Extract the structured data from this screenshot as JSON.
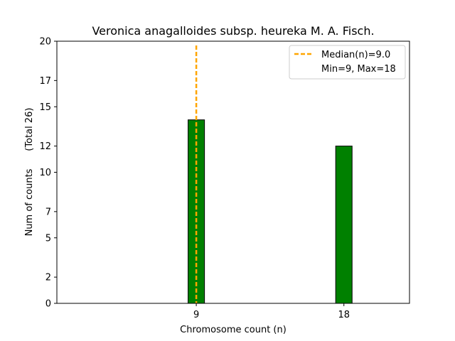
{
  "chart_data": {
    "type": "bar",
    "title": "Veronica anagalloides subsp. heureka M. A. Fisch.",
    "xlabel": "Chromosome count (n)",
    "ylabel": "Num of counts      (Total 26)",
    "categories": [
      9,
      18
    ],
    "values": [
      14,
      12
    ],
    "xlim": [
      0.5,
      22
    ],
    "ylim": [
      0,
      20
    ],
    "yticks": [
      0,
      2,
      5,
      7,
      10,
      12,
      15,
      17,
      20
    ],
    "xticks": [
      9,
      18
    ],
    "bar_width": 1,
    "bar_color": "#008000",
    "bar_edge_color": "#000000",
    "median_line": {
      "x": 9,
      "color": "#FFA500",
      "label": "Median(n)=9.0"
    },
    "legend": {
      "placement": "top-right",
      "entries": [
        "Median(n)=9.0",
        "Min=9, Max=18"
      ]
    },
    "grid": false
  }
}
